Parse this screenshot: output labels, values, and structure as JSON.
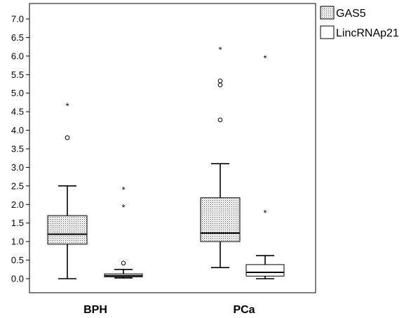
{
  "chart_data": {
    "type": "boxplot",
    "categories": [
      "BPH",
      "PCa"
    ],
    "ylim": [
      0,
      7
    ],
    "yticks": [
      "0.0",
      "0.5",
      "1.0",
      "1.5",
      "2.0",
      "2.5",
      "3.0",
      "3.5",
      "4.0",
      "4.5",
      "5.0",
      "5.5",
      "6.0",
      "6.5",
      "7.0"
    ],
    "legend_position": "top-right, outside plot",
    "series": [
      {
        "name": "GAS5",
        "fill": "dotted",
        "boxes": [
          {
            "category": "BPH",
            "min": 0.0,
            "q1": 0.93,
            "median": 1.2,
            "q3": 1.7,
            "max": 2.5,
            "outliers": [
              3.8
            ],
            "extremes": [
              4.68
            ]
          },
          {
            "category": "PCa",
            "min": 0.3,
            "q1": 1.0,
            "median": 1.23,
            "q3": 2.18,
            "max": 3.1,
            "outliers": [
              4.28,
              5.22,
              5.33
            ],
            "extremes": [
              6.2
            ]
          }
        ]
      },
      {
        "name": "LincRNAp21",
        "fill": "white",
        "boxes": [
          {
            "category": "BPH",
            "min": 0.02,
            "q1": 0.05,
            "median": 0.08,
            "q3": 0.13,
            "max": 0.25,
            "outliers": [
              0.42
            ],
            "extremes": [
              1.95,
              2.42
            ]
          },
          {
            "category": "PCa",
            "min": 0.0,
            "q1": 0.07,
            "median": 0.17,
            "q3": 0.38,
            "max": 0.62,
            "outliers": [],
            "extremes": [
              1.8,
              5.97
            ]
          }
        ]
      }
    ]
  }
}
